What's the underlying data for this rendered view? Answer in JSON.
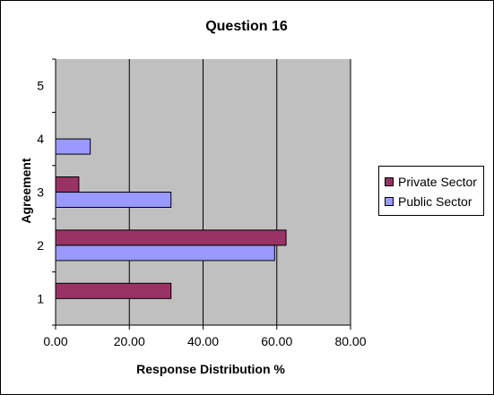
{
  "chart_data": {
    "type": "bar",
    "orientation": "horizontal",
    "title": "Question 16",
    "xlabel": "Response Distribution %",
    "ylabel": "Agreement",
    "categories": [
      "1",
      "2",
      "3",
      "4",
      "5"
    ],
    "xlim": [
      0,
      80
    ],
    "xticks": [
      "0.00",
      "20.00",
      "40.00",
      "60.00",
      "80.00"
    ],
    "grid": true,
    "legend_position": "right",
    "plot_background": "#c0c0c0",
    "series": [
      {
        "name": "Private Sector",
        "color": "#993366",
        "values": [
          31.3,
          62.5,
          6.3,
          0,
          0
        ]
      },
      {
        "name": "Public Sector",
        "color": "#9999ff",
        "values": [
          0,
          59.4,
          31.3,
          9.4,
          0
        ]
      }
    ]
  }
}
